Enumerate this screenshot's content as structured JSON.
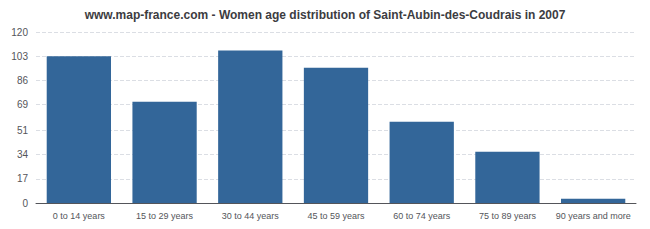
{
  "chart_data": {
    "type": "bar",
    "title": "www.map-france.com - Women age distribution of Saint-Aubin-des-Coudrais in 2007",
    "categories": [
      "0 to 14 years",
      "15 to 29 years",
      "30 to 44 years",
      "45 to 59 years",
      "60 to 74 years",
      "75 to 89 years",
      "90 years and more"
    ],
    "values": [
      103,
      71,
      107,
      95,
      57,
      36,
      3
    ],
    "color": "#336699",
    "ylim": [
      0,
      120
    ],
    "yticks": [
      0,
      17,
      34,
      51,
      69,
      86,
      103,
      120
    ],
    "grid": true
  }
}
